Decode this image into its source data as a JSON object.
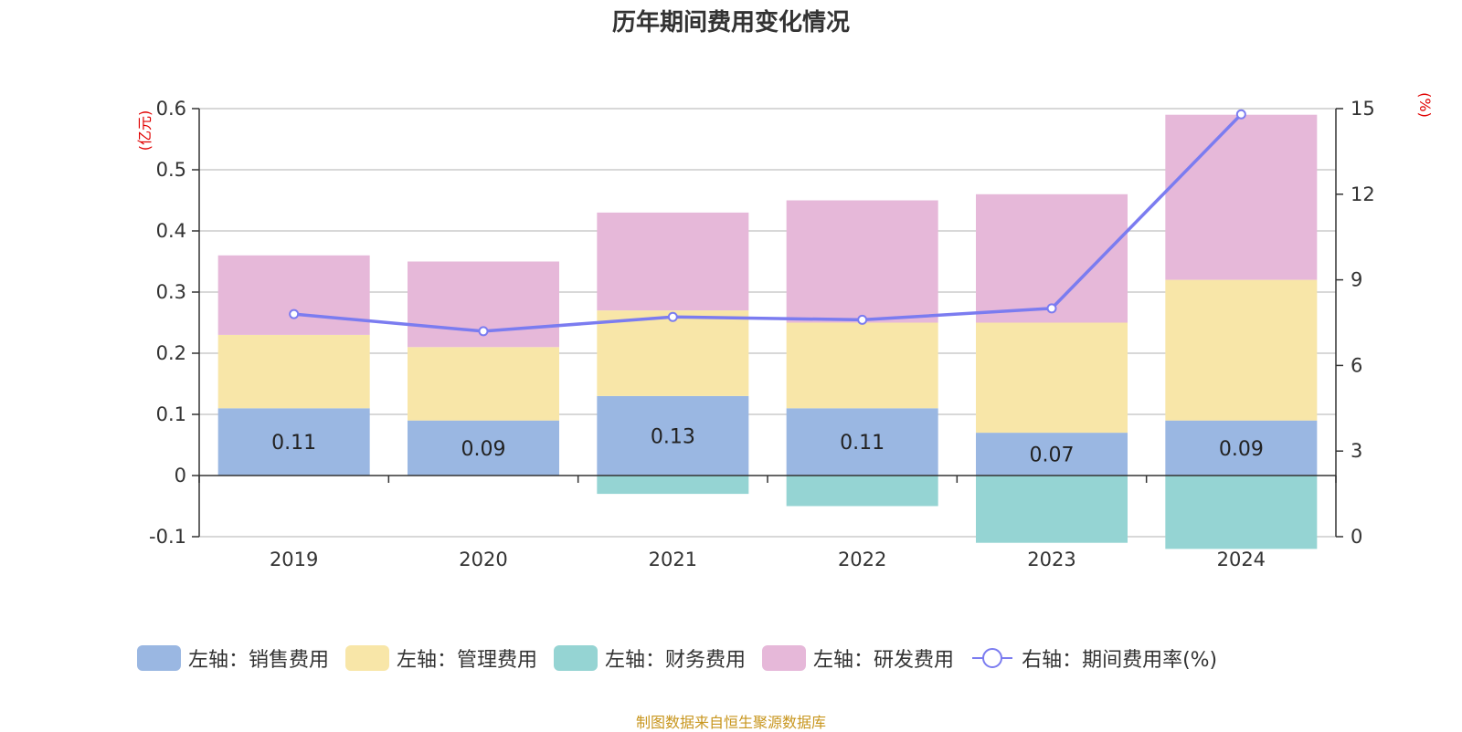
{
  "title": "历年期间费用变化情况",
  "source_note": "制图数据来自恒生聚源数据库",
  "left_axis_unit": "(亿元)",
  "right_axis_unit": "(%)",
  "colors": {
    "sales": "#9ab7e2",
    "admin": "#f8e6a8",
    "finance": "#95d4d3",
    "rnd": "#e6b8d9",
    "rate_line": "#7b7cf0"
  },
  "legend": [
    {
      "key": "sales",
      "label": "左轴：销售费用",
      "kind": "box"
    },
    {
      "key": "admin",
      "label": "左轴：管理费用",
      "kind": "box"
    },
    {
      "key": "finance",
      "label": "左轴：财务费用",
      "kind": "box"
    },
    {
      "key": "rnd",
      "label": "左轴：研发费用",
      "kind": "box"
    },
    {
      "key": "rate_line",
      "label": "右轴：期间费用率(%)",
      "kind": "line"
    }
  ],
  "chart_data": {
    "type": "bar",
    "title": "历年期间费用变化情况",
    "categories": [
      "2019",
      "2020",
      "2021",
      "2022",
      "2023",
      "2024"
    ],
    "left_axis": {
      "ylim": [
        -0.1,
        0.6
      ],
      "ticks": [
        "-0.1",
        "0",
        "0.1",
        "0.2",
        "0.3",
        "0.4",
        "0.5",
        "0.6"
      ],
      "unit": "(亿元)"
    },
    "right_axis": {
      "ylim": [
        0,
        15
      ],
      "ticks": [
        "0",
        "3",
        "6",
        "9",
        "12",
        "15"
      ],
      "unit": "(%)"
    },
    "series": [
      {
        "key": "sales",
        "name": "左轴：销售费用",
        "stack": true,
        "axis": "left",
        "values": [
          0.11,
          0.09,
          0.13,
          0.11,
          0.07,
          0.09
        ],
        "labels": [
          "0.11",
          "0.09",
          "0.13",
          "0.11",
          "0.07",
          "0.09"
        ]
      },
      {
        "key": "admin",
        "name": "左轴：管理费用",
        "stack": true,
        "axis": "left",
        "values": [
          0.12,
          0.12,
          0.14,
          0.14,
          0.18,
          0.23
        ]
      },
      {
        "key": "finance",
        "name": "左轴：财务费用",
        "stack": true,
        "axis": "left",
        "values": [
          0.0,
          0.0,
          -0.03,
          -0.05,
          -0.11,
          -0.12
        ]
      },
      {
        "key": "rnd",
        "name": "左轴：研发费用",
        "stack": true,
        "axis": "left",
        "values": [
          0.13,
          0.14,
          0.16,
          0.2,
          0.21,
          0.27
        ]
      },
      {
        "key": "rate_line",
        "name": "右轴：期间费用率(%)",
        "type": "line",
        "axis": "right",
        "values": [
          7.8,
          7.2,
          7.7,
          7.6,
          8.0,
          14.8
        ]
      }
    ],
    "grid": true,
    "legend_position": "bottom"
  }
}
